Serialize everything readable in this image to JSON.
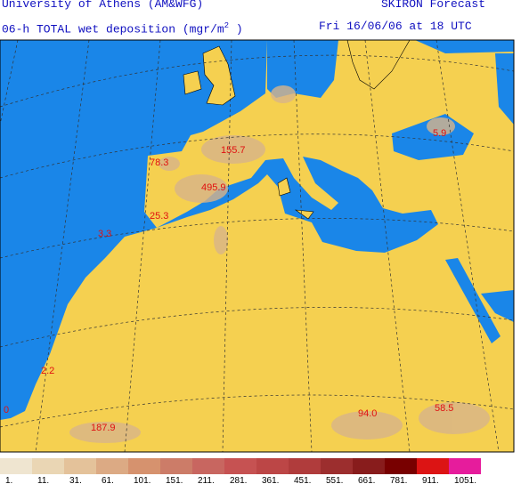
{
  "header": {
    "institution": "University of Athens (AM&WFG)",
    "product": "SKIRON Forecast",
    "subtitle_prefix": "06-h TOTAL wet deposition (mgr/m",
    "subtitle_superscript": "2",
    "subtitle_suffix": ")",
    "valid_time": "Fri 16/06/06 at 18 UTC"
  },
  "map": {
    "labels": [
      "155.7",
      "78.3",
      "495.9",
      "25.3",
      "3.3",
      "5.9",
      "2.2",
      "0",
      "187.9",
      "94.0",
      "58.5"
    ]
  },
  "legend": {
    "labels": [
      "1.",
      "11.",
      "31.",
      "61.",
      "101.",
      "151.",
      "211.",
      "281.",
      "361.",
      "451.",
      "551.",
      "661.",
      "781.",
      "911.",
      "1051."
    ],
    "colors": [
      "#efe5d0",
      "#ead6b4",
      "#e4c29a",
      "#dcaa84",
      "#d6926e",
      "#cc7c68",
      "#c86660",
      "#c65252",
      "#bc4646",
      "#b03c3c",
      "#9c2e2e",
      "#881c1c",
      "#780000",
      "#dc1414",
      "#e61c9c"
    ]
  }
}
